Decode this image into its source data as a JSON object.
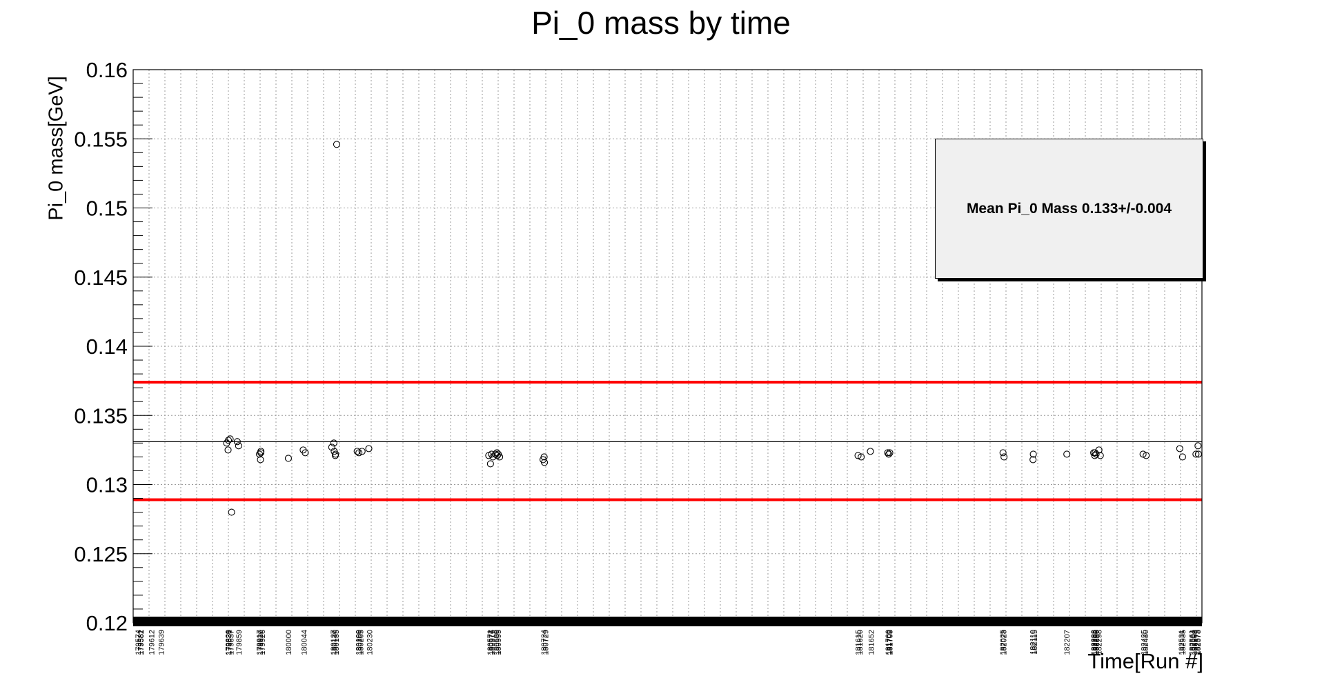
{
  "chart_data": {
    "type": "scatter",
    "title": "Pi_0 mass by time",
    "xlabel": "Time[Run #]",
    "ylabel": "Pi_0 mass[GeV]",
    "ylim": [
      0.12,
      0.16
    ],
    "y_ticks": [
      "0.12",
      "0.125",
      "0.13",
      "0.135",
      "0.14",
      "0.145",
      "0.15",
      "0.155",
      "0.16"
    ],
    "grid": true,
    "legend_text": "Mean Pi_0 Mass 0.133+/-0.004",
    "legend_position": "top-right",
    "mean": 0.1331,
    "limits": [
      0.1374,
      0.1289
    ],
    "line_colors": {
      "mean": "#000000",
      "limits": "#ff0000"
    },
    "x_tick_labels": [
      "179574",
      "179581",
      "179582",
      "179612",
      "179639",
      "179829",
      "179830",
      "179831",
      "179837",
      "179859",
      "179917",
      "179920",
      "179926",
      "180000",
      "180044",
      "180127",
      "180130",
      "180135",
      "180199",
      "180200",
      "180205",
      "180230",
      "180571",
      "180572",
      "180576",
      "180589",
      "180590",
      "180595",
      "180724",
      "180729",
      "181615",
      "181620",
      "181652",
      "181700",
      "181703",
      "181705",
      "182025",
      "182028",
      "182110",
      "182115",
      "182207",
      "182283",
      "182285",
      "182288",
      "182290",
      "182298",
      "182425",
      "182430",
      "182531",
      "182535",
      "182561",
      "182564",
      "182568",
      "182575",
      "182578"
    ],
    "points": [
      {
        "x": "179829",
        "y": 0.133
      },
      {
        "x": "179830",
        "y": 0.1332
      },
      {
        "x": "179831",
        "y": 0.1333
      },
      {
        "x": "179831",
        "y": 0.1325
      },
      {
        "x": "179837",
        "y": 0.128
      },
      {
        "x": "179859",
        "y": 0.1331
      },
      {
        "x": "179859",
        "y": 0.1328
      },
      {
        "x": "179917",
        "y": 0.1318
      },
      {
        "x": "179920",
        "y": 0.1322
      },
      {
        "x": "179920",
        "y": 0.1323
      },
      {
        "x": "179926",
        "y": 0.1324
      },
      {
        "x": "180000",
        "y": 0.1319
      },
      {
        "x": "180044",
        "y": 0.1323
      },
      {
        "x": "180044",
        "y": 0.1325
      },
      {
        "x": "180127",
        "y": 0.133
      },
      {
        "x": "180127",
        "y": 0.1327
      },
      {
        "x": "180130",
        "y": 0.1324
      },
      {
        "x": "180130",
        "y": 0.1322
      },
      {
        "x": "180135",
        "y": 0.1321
      },
      {
        "x": "180135",
        "y": 0.1546
      },
      {
        "x": "180199",
        "y": 0.1324
      },
      {
        "x": "180200",
        "y": 0.1323
      },
      {
        "x": "180205",
        "y": 0.1324
      },
      {
        "x": "180230",
        "y": 0.1326
      },
      {
        "x": "180571",
        "y": 0.1315
      },
      {
        "x": "180572",
        "y": 0.1321
      },
      {
        "x": "180576",
        "y": 0.1322
      },
      {
        "x": "180576",
        "y": 0.132
      },
      {
        "x": "180589",
        "y": 0.1322
      },
      {
        "x": "180590",
        "y": 0.1321
      },
      {
        "x": "180595",
        "y": 0.1323
      },
      {
        "x": "180595",
        "y": 0.1322
      },
      {
        "x": "180595",
        "y": 0.132
      },
      {
        "x": "180724",
        "y": 0.1318
      },
      {
        "x": "180724",
        "y": 0.1316
      },
      {
        "x": "180729",
        "y": 0.132
      },
      {
        "x": "181615",
        "y": 0.1321
      },
      {
        "x": "181620",
        "y": 0.132
      },
      {
        "x": "181652",
        "y": 0.1324
      },
      {
        "x": "181700",
        "y": 0.1322
      },
      {
        "x": "181703",
        "y": 0.1323
      },
      {
        "x": "181705",
        "y": 0.1323
      },
      {
        "x": "182025",
        "y": 0.132
      },
      {
        "x": "182028",
        "y": 0.1323
      },
      {
        "x": "182110",
        "y": 0.1322
      },
      {
        "x": "182115",
        "y": 0.1318
      },
      {
        "x": "182207",
        "y": 0.1322
      },
      {
        "x": "182283",
        "y": 0.1323
      },
      {
        "x": "182285",
        "y": 0.1323
      },
      {
        "x": "182288",
        "y": 0.1322
      },
      {
        "x": "182290",
        "y": 0.1321
      },
      {
        "x": "182298",
        "y": 0.1325
      },
      {
        "x": "182298",
        "y": 0.1321
      },
      {
        "x": "182425",
        "y": 0.1322
      },
      {
        "x": "182430",
        "y": 0.1321
      },
      {
        "x": "182531",
        "y": 0.1326
      },
      {
        "x": "182535",
        "y": 0.132
      },
      {
        "x": "182575",
        "y": 0.1328
      },
      {
        "x": "182575",
        "y": 0.1322
      },
      {
        "x": "182578",
        "y": 0.1322
      }
    ]
  }
}
